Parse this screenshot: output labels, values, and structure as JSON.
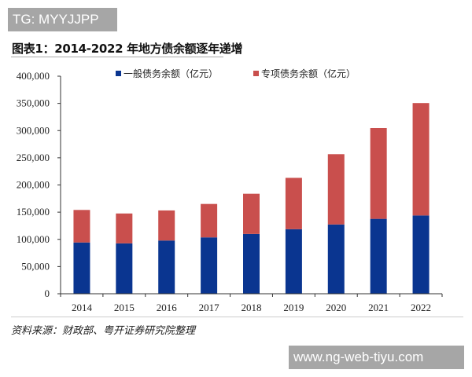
{
  "watermark_top": "TG: MYYJJPP",
  "watermark_bottom": "www.ng-web-tiyu.com",
  "source": "资料来源：财政部、粤开证券研究院整理",
  "chart_data": {
    "type": "bar",
    "stacked": true,
    "title": "图表1：2014-2022 年地方债余额逐年递增",
    "xlabel": "",
    "ylabel": "",
    "categories": [
      "2014",
      "2015",
      "2016",
      "2017",
      "2018",
      "2019",
      "2020",
      "2021",
      "2022"
    ],
    "series": [
      {
        "name": "一般债务余额（亿元）",
        "color": "#0a3590",
        "values": [
          94272,
          92619,
          97867,
          103632,
          109939,
          118694,
          127395,
          137709,
          143896
        ]
      },
      {
        "name": "专项债务余额（亿元）",
        "color": "#c94f4d",
        "values": [
          59802,
          54949,
          55297,
          61468,
          73923,
          94378,
          129220,
          166991,
          206722
        ]
      }
    ],
    "ylim": [
      0,
      400000
    ],
    "yticks": [
      0,
      50000,
      100000,
      150000,
      200000,
      250000,
      300000,
      350000,
      400000
    ],
    "ytick_labels": [
      "0",
      "50,000",
      "100,000",
      "150,000",
      "200,000",
      "250,000",
      "300,000",
      "350,000",
      "400,000"
    ],
    "grid": false,
    "legend_position": "top"
  }
}
